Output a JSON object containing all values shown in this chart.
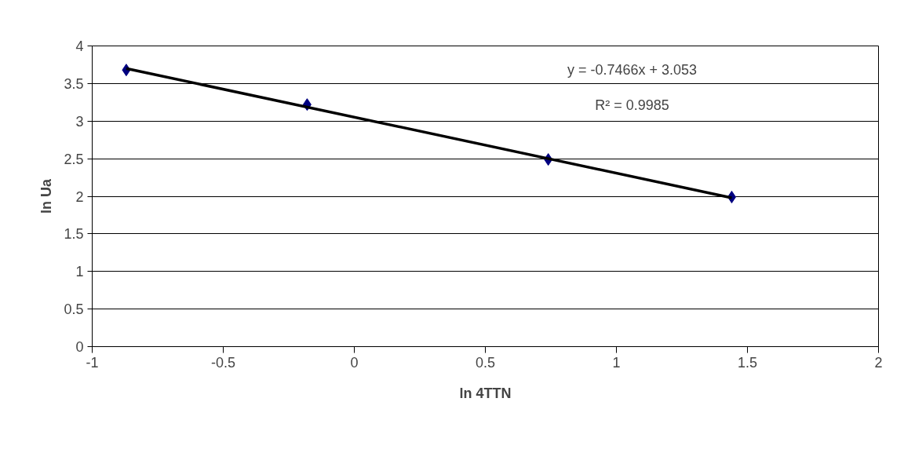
{
  "chart_data": {
    "type": "scatter",
    "xlabel": "ln 4TTN",
    "ylabel": "ln Ua",
    "x": [
      -0.87,
      -0.18,
      0.74,
      1.44
    ],
    "series": [
      {
        "color": "#000080",
        "values": [
          3.68,
          3.22,
          2.49,
          1.99
        ],
        "marker": "diamond"
      },
      {
        "type": "line",
        "color": "#000000",
        "x": [
          -0.87,
          1.44
        ],
        "values": [
          3.7,
          1.98
        ],
        "marker": "none",
        "line_style": "solid"
      }
    ],
    "annotations": [
      "y = -0.7466x + 3.053",
      "R² = 0.9985"
    ],
    "xlim": [
      -1,
      2
    ],
    "xticks": [
      -1,
      -0.5,
      0,
      0.5,
      1,
      1.5,
      2
    ],
    "ylim": [
      0,
      4
    ],
    "yticks": [
      0,
      0.5,
      1,
      1.5,
      2,
      2.5,
      3,
      3.5,
      4
    ],
    "grid": "y"
  }
}
